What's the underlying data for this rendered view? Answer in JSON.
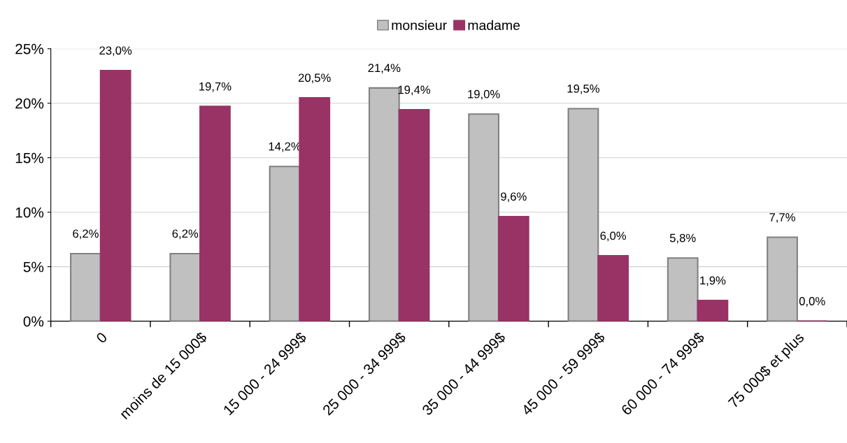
{
  "chart_data": {
    "type": "bar",
    "categories": [
      "0",
      "moins de 15 000$",
      "15 000 - 24 999$",
      "25 000 - 34 999$",
      "35 000 - 44 999$",
      "45 000 - 59 999$",
      "60 000 - 74 999$",
      "75 000$ et plus"
    ],
    "series": [
      {
        "name": "monsieur",
        "color": "#c0c0c0",
        "values": [
          6.2,
          6.2,
          14.2,
          21.4,
          19.0,
          19.5,
          5.8,
          7.7
        ],
        "value_labels": [
          "6,2%",
          "6,2%",
          "14,2%",
          "21,4%",
          "19,0%",
          "19,5%",
          "5,8%",
          "7,7%"
        ]
      },
      {
        "name": "madame",
        "color": "#993366",
        "values": [
          23.0,
          19.7,
          20.5,
          19.4,
          9.6,
          6.0,
          1.9,
          0.0
        ],
        "value_labels": [
          "23,0%",
          "19,7%",
          "20,5%",
          "19,4%",
          "9,6%",
          "6,0%",
          "1,9%",
          "0,0%"
        ]
      }
    ],
    "ylim": [
      0,
      25
    ],
    "yticks": [
      {
        "value": 0,
        "label": "0%"
      },
      {
        "value": 5,
        "label": "5%"
      },
      {
        "value": 10,
        "label": "10%"
      },
      {
        "value": 15,
        "label": "15%"
      },
      {
        "value": 20,
        "label": "20%"
      },
      {
        "value": 25,
        "label": "25%"
      }
    ],
    "grid": "y",
    "legend": "top"
  }
}
